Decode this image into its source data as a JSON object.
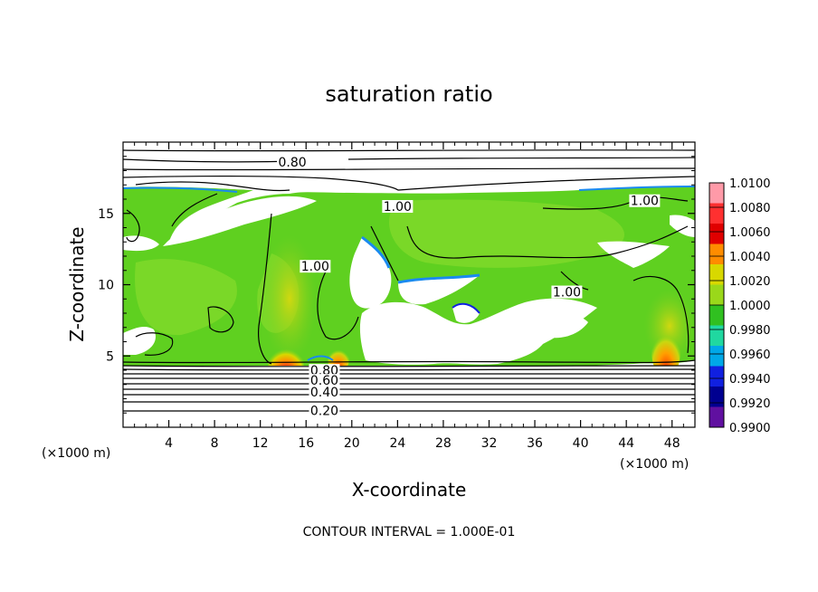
{
  "chart_data": {
    "type": "contour",
    "title": "saturation ratio",
    "xlabel": "X-coordinate",
    "ylabel": "Z-coordinate",
    "x_unit_left": "(×1000 m)",
    "x_unit_right": "(×1000 m)",
    "xlim": [
      0,
      50
    ],
    "ylim": [
      0,
      20
    ],
    "x_ticks": [
      4,
      8,
      12,
      16,
      20,
      24,
      28,
      32,
      36,
      40,
      44,
      48
    ],
    "y_ticks": [
      5,
      10,
      15
    ],
    "note": "CONTOUR INTERVAL = 1.000E-01",
    "colorbar": {
      "labels": [
        "1.0100",
        "1.0080",
        "1.0060",
        "1.0040",
        "1.0020",
        "1.0000",
        "0.9980",
        "0.9960",
        "0.9940",
        "0.9920",
        "0.9900"
      ],
      "colors": [
        "#ff9aa8",
        "#ff3030",
        "#e00000",
        "#ff8c00",
        "#d8d800",
        "#9ad81a",
        "#30c020",
        "#20d8a0",
        "#00a8e8",
        "#1020e0",
        "#000090",
        "#6010a0"
      ]
    },
    "contour_labels": [
      {
        "text": "0.80",
        "x": 14.8,
        "z": 18.4
      },
      {
        "text": "1.00",
        "x": 24.0,
        "z": 15.3
      },
      {
        "text": "1.00",
        "x": 45.6,
        "z": 15.7
      },
      {
        "text": "1.00",
        "x": 16.8,
        "z": 11.1
      },
      {
        "text": "1.00",
        "x": 38.8,
        "z": 9.3
      },
      {
        "text": "0.80",
        "x": 17.6,
        "z": 3.8
      },
      {
        "text": "0.60",
        "x": 17.6,
        "z": 3.1
      },
      {
        "text": "0.40",
        "x": 17.6,
        "z": 2.3
      },
      {
        "text": "0.20",
        "x": 17.6,
        "z": 1.0
      }
    ]
  }
}
